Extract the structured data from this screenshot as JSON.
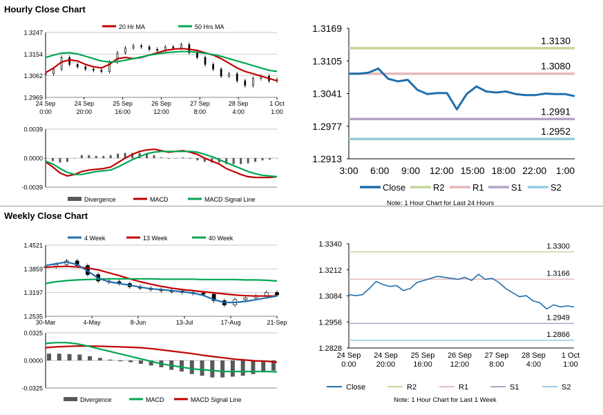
{
  "hourly_title": "Hourly Close Chart",
  "weekly_title": "Weekly Close Chart",
  "colors": {
    "red": "#c00000",
    "green": "#00a651",
    "blue": "#1f6fad",
    "gray": "#595959",
    "r2": "#c4d79b",
    "r1": "#e6b9b8",
    "s1": "#b3a2c7",
    "s2": "#93cddd"
  },
  "chart_data": [
    {
      "id": "hourly_price",
      "type": "line",
      "legend": [
        "20 Hr MA",
        "50 Hrs MA"
      ],
      "y_ticks": [
        "1.3247",
        "1.3154",
        "1.3062",
        "1.2969"
      ],
      "ylim": [
        1.2969,
        1.3247
      ],
      "x_ticks": [
        [
          "24 Sep",
          "0:00"
        ],
        [
          "24 Sep",
          "20:00"
        ],
        [
          "25 Sep",
          "16:00"
        ],
        [
          "26 Sep",
          "12:00"
        ],
        [
          "27 Sep",
          "8:00"
        ],
        [
          "28 Sep",
          "4:00"
        ],
        [
          "1 Oct",
          "1:00"
        ]
      ],
      "series": [
        {
          "name": "20 Hr MA",
          "values": [
            1.3075,
            1.3095,
            1.312,
            1.313,
            1.3125,
            1.311,
            1.31,
            1.3095,
            1.311,
            1.3135,
            1.314,
            1.3135,
            1.314,
            1.315,
            1.316,
            1.317,
            1.3175,
            1.3178,
            1.3175,
            1.317,
            1.316,
            1.315,
            1.3135,
            1.3115,
            1.3095,
            1.308,
            1.307,
            1.306,
            1.305,
            1.304
          ]
        },
        {
          "name": "50 Hrs MA",
          "values": [
            1.314,
            1.315,
            1.3158,
            1.316,
            1.3155,
            1.3145,
            1.3135,
            1.3125,
            1.312,
            1.3122,
            1.3128,
            1.3135,
            1.3142,
            1.315,
            1.3155,
            1.316,
            1.3163,
            1.3165,
            1.3165,
            1.3162,
            1.3158,
            1.3152,
            1.3145,
            1.3135,
            1.3125,
            1.3115,
            1.3105,
            1.3095,
            1.3085,
            1.308
          ]
        },
        {
          "name": "price",
          "values": [
            1.307,
            1.309,
            1.314,
            1.311,
            1.31,
            1.309,
            1.3085,
            1.308,
            1.312,
            1.316,
            1.318,
            1.319,
            1.3185,
            1.3175,
            1.317,
            1.3185,
            1.318,
            1.3195,
            1.316,
            1.314,
            1.311,
            1.309,
            1.306,
            1.307,
            1.304,
            1.302,
            1.305,
            1.306,
            1.304,
            1.3045
          ]
        }
      ]
    },
    {
      "id": "hourly_macd",
      "type": "bar",
      "legend": [
        "Divergence",
        "MACD",
        "MACD Signal Line"
      ],
      "y_ticks": [
        "0.0039",
        "0.0000",
        "-0.0039"
      ],
      "ylim": [
        -0.0039,
        0.0039
      ],
      "series": [
        {
          "name": "MACD",
          "values": [
            -0.0005,
            -0.0012,
            -0.002,
            -0.0024,
            -0.0022,
            -0.0018,
            -0.0016,
            -0.0015,
            -0.0014,
            -0.0012,
            -0.0006,
            0.0,
            0.0005,
            0.0009,
            0.0011,
            0.0012,
            0.001,
            0.0008,
            0.0009,
            0.001,
            0.0008,
            0.0005,
            0.0,
            -0.0004,
            -0.0008,
            -0.0014,
            -0.0018,
            -0.0022,
            -0.0025,
            -0.0026,
            -0.0026,
            -0.0026,
            -0.0025
          ]
        },
        {
          "name": "MACD Signal Line",
          "values": [
            -0.0004,
            -0.0008,
            -0.0014,
            -0.0019,
            -0.0022,
            -0.0022,
            -0.002,
            -0.0018,
            -0.0017,
            -0.0016,
            -0.0012,
            -0.0007,
            -0.0002,
            0.0002,
            0.0006,
            0.0008,
            0.0009,
            0.0009,
            0.0009,
            0.0009,
            0.0009,
            0.0008,
            0.0005,
            0.0002,
            -0.0002,
            -0.0006,
            -0.001,
            -0.0014,
            -0.0018,
            -0.0021,
            -0.0023,
            -0.0024,
            -0.0025
          ]
        },
        {
          "name": "Divergence",
          "values": [
            -0.0001,
            -0.0004,
            -0.0006,
            -0.0005,
            0.0,
            0.0004,
            0.0004,
            0.0003,
            0.0003,
            0.0004,
            0.0006,
            0.0007,
            0.0007,
            0.0007,
            0.0005,
            0.0004,
            0.0001,
            -0.0001,
            0.0,
            0.0001,
            -0.0001,
            -0.0003,
            -0.0005,
            -0.0006,
            -0.0006,
            -0.0008,
            -0.0008,
            -0.0008,
            -0.0007,
            -0.0005,
            -0.0003,
            -0.0002,
            0.0
          ]
        }
      ]
    },
    {
      "id": "hourly_close",
      "type": "line",
      "legend": [
        "Close",
        "R2",
        "R1",
        "S1",
        "S2"
      ],
      "note": "Note: 1 Hour Chart for Last 24 Hours",
      "y_ticks": [
        "1.3169",
        "1.3105",
        "1.3041",
        "1.2977",
        "1.2913"
      ],
      "ylim": [
        1.2913,
        1.3169
      ],
      "x_ticks": [
        "3:00",
        "6:00",
        "9:00",
        "12:00",
        "15:00",
        "18:00",
        "22:00",
        "1:00"
      ],
      "levels": [
        {
          "name": "R2",
          "value": 1.313,
          "label": "1.3130"
        },
        {
          "name": "R1",
          "value": 1.308,
          "label": "1.3080"
        },
        {
          "name": "S1",
          "value": 1.2991,
          "label": "1.2991"
        },
        {
          "name": "S2",
          "value": 1.2952,
          "label": "1.2952"
        }
      ],
      "values": [
        1.308,
        1.308,
        1.3082,
        1.309,
        1.307,
        1.3065,
        1.3068,
        1.3048,
        1.304,
        1.3042,
        1.3042,
        1.301,
        1.304,
        1.3055,
        1.3045,
        1.3043,
        1.3045,
        1.304,
        1.3038,
        1.3038,
        1.3041,
        1.304,
        1.304,
        1.3036
      ]
    },
    {
      "id": "weekly_price",
      "type": "line",
      "legend": [
        "4 Week",
        "13 Week",
        "40 Week"
      ],
      "y_ticks": [
        "1.4521",
        "1.3859",
        "1.3197",
        "1.2535"
      ],
      "ylim": [
        1.2535,
        1.4521
      ],
      "x_ticks": [
        "30-Mar",
        "4-May",
        "8-Jun",
        "13-Jul",
        "17-Aug",
        "21-Sep"
      ],
      "series": [
        {
          "name": "4 Week",
          "values": [
            1.395,
            1.4,
            1.405,
            1.398,
            1.38,
            1.36,
            1.35,
            1.345,
            1.34,
            1.335,
            1.33,
            1.328,
            1.325,
            1.322,
            1.318,
            1.312,
            1.3,
            1.292,
            1.292,
            1.295,
            1.3,
            1.305,
            1.31
          ]
        },
        {
          "name": "13 Week",
          "values": [
            1.39,
            1.392,
            1.393,
            1.391,
            1.388,
            1.383,
            1.375,
            1.367,
            1.358,
            1.35,
            1.343,
            1.337,
            1.332,
            1.328,
            1.325,
            1.322,
            1.319,
            1.316,
            1.313,
            1.311,
            1.31,
            1.31,
            1.31
          ]
        },
        {
          "name": "40 Week",
          "values": [
            1.345,
            1.35,
            1.353,
            1.355,
            1.356,
            1.357,
            1.358,
            1.358,
            1.358,
            1.358,
            1.358,
            1.357,
            1.357,
            1.357,
            1.357,
            1.356,
            1.356,
            1.356,
            1.356,
            1.355,
            1.355,
            1.354,
            1.352
          ]
        },
        {
          "name": "price",
          "values": [
            1.392,
            1.398,
            1.408,
            1.395,
            1.37,
            1.352,
            1.35,
            1.345,
            1.336,
            1.332,
            1.328,
            1.325,
            1.324,
            1.32,
            1.318,
            1.315,
            1.297,
            1.285,
            1.3,
            1.305,
            1.31,
            1.32,
            1.313
          ]
        }
      ]
    },
    {
      "id": "weekly_macd",
      "type": "bar",
      "legend": [
        "Divergence",
        "MACD",
        "MACD Signal Line"
      ],
      "y_ticks": [
        "0.0325",
        "0.0000",
        "-0.0325"
      ],
      "ylim": [
        -0.0325,
        0.0325
      ],
      "series": [
        {
          "name": "MACD",
          "values": [
            0.02,
            0.021,
            0.021,
            0.0195,
            0.017,
            0.014,
            0.011,
            0.008,
            0.005,
            0.002,
            -0.001,
            -0.004,
            -0.006,
            -0.008,
            -0.01,
            -0.011,
            -0.012,
            -0.013,
            -0.013,
            -0.013,
            -0.013,
            -0.013,
            -0.0135
          ]
        },
        {
          "name": "MACD Signal Line",
          "values": [
            0.015,
            0.016,
            0.0165,
            0.017,
            0.017,
            0.0168,
            0.0163,
            0.016,
            0.0155,
            0.015,
            0.014,
            0.0125,
            0.011,
            0.0095,
            0.008,
            0.006,
            0.0045,
            0.003,
            0.0015,
            0.0005,
            -0.0005,
            -0.001,
            -0.002
          ]
        },
        {
          "name": "Divergence",
          "values": [
            0.008,
            0.008,
            0.0075,
            0.007,
            0.005,
            0.003,
            0.001,
            -0.001,
            -0.002,
            -0.004,
            -0.006,
            -0.008,
            -0.011,
            -0.013,
            -0.016,
            -0.018,
            -0.02,
            -0.02,
            -0.019,
            -0.018,
            -0.016,
            -0.014,
            -0.012
          ]
        }
      ]
    },
    {
      "id": "weekly_close",
      "type": "line",
      "legend": [
        "Close",
        "R2",
        "R1",
        "S1",
        "S2"
      ],
      "note": "Note: 1 Hour Chart for Last 1 Week",
      "y_ticks": [
        "1.3340",
        "1.3212",
        "1.3084",
        "1.2956",
        "1.2828"
      ],
      "ylim": [
        1.2828,
        1.334
      ],
      "x_ticks": [
        [
          "24 Sep",
          "0:00"
        ],
        [
          "24 Sep",
          "20:00"
        ],
        [
          "25 Sep",
          "16:00"
        ],
        [
          "26 Sep",
          "12:00"
        ],
        [
          "27 Sep",
          "8:00"
        ],
        [
          "28 Sep",
          "4:00"
        ],
        [
          "1 Oct",
          "1:00"
        ]
      ],
      "levels": [
        {
          "name": "R2",
          "value": 1.33,
          "label": "1.3300"
        },
        {
          "name": "R1",
          "value": 1.3166,
          "label": "1.3166"
        },
        {
          "name": "S1",
          "value": 1.2949,
          "label": "1.2949"
        },
        {
          "name": "S2",
          "value": 1.2866,
          "label": "1.2866"
        }
      ],
      "values": [
        1.309,
        1.3085,
        1.309,
        1.312,
        1.3155,
        1.314,
        1.313,
        1.3135,
        1.311,
        1.312,
        1.315,
        1.316,
        1.317,
        1.318,
        1.3175,
        1.317,
        1.3165,
        1.3175,
        1.316,
        1.319,
        1.3165,
        1.317,
        1.315,
        1.312,
        1.31,
        1.308,
        1.3085,
        1.306,
        1.305,
        1.302,
        1.304,
        1.303,
        1.3035,
        1.303
      ]
    }
  ]
}
